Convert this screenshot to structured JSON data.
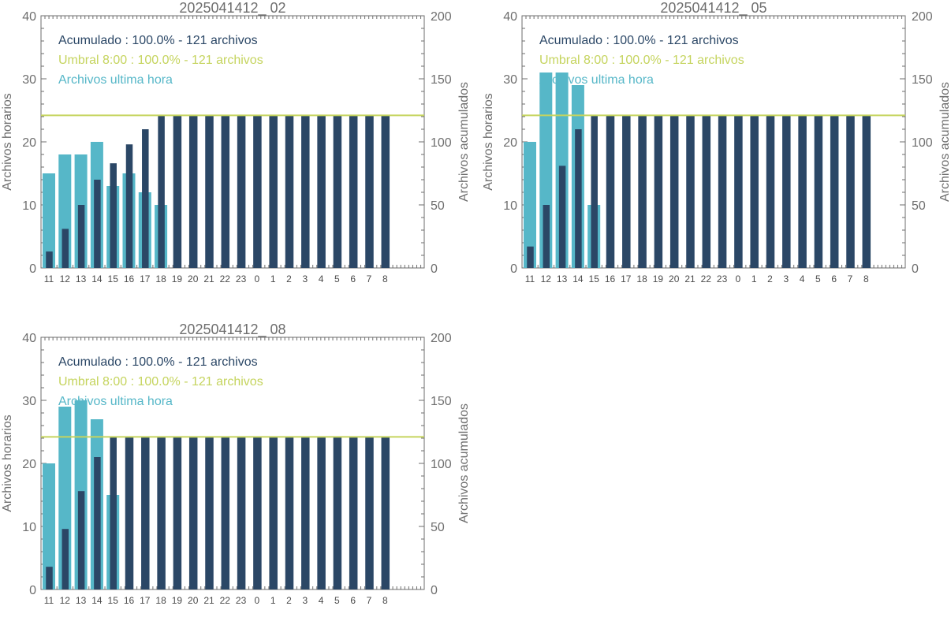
{
  "colors": {
    "hourly": "#56B7C8",
    "cumulative": "#2B4766",
    "threshold": "#C5D45E",
    "axis": "#6e6e6e"
  },
  "chart_data": [
    {
      "type": "bar",
      "title": "2025041412_ 02",
      "categories": [
        "11",
        "12",
        "13",
        "14",
        "15",
        "16",
        "17",
        "18",
        "19",
        "20",
        "21",
        "22",
        "23",
        "0",
        "1",
        "2",
        "3",
        "4",
        "5",
        "6",
        "7",
        "8"
      ],
      "ylabel": "Archivos horarios",
      "y2label": "Archivos acumulados",
      "ylim": [
        0,
        40
      ],
      "y2lim": [
        0,
        200
      ],
      "yticks": [
        "0",
        "10",
        "20",
        "30",
        "40"
      ],
      "y2ticks": [
        "0",
        "50",
        "100",
        "150",
        "200"
      ],
      "threshold": 121,
      "legend": [
        "Acumulado : 100.0% - 121 archivos",
        "Umbral 8:00 : 100.0% - 121 archivos",
        "Archivos ultima hora"
      ],
      "series": [
        {
          "values": [
            15,
            18,
            18,
            20,
            13,
            15,
            12,
            10,
            0,
            0,
            0,
            0,
            0,
            0,
            0,
            0,
            0,
            0,
            0,
            0,
            0,
            0
          ]
        },
        {
          "values": [
            13,
            31,
            50,
            70,
            83,
            98,
            110,
            121,
            121,
            121,
            121,
            121,
            121,
            121,
            121,
            121,
            121,
            121,
            121,
            121,
            121,
            121
          ]
        }
      ]
    },
    {
      "type": "bar",
      "title": "2025041412_ 05",
      "categories": [
        "11",
        "12",
        "13",
        "14",
        "15",
        "16",
        "17",
        "18",
        "19",
        "20",
        "21",
        "22",
        "23",
        "0",
        "1",
        "2",
        "3",
        "4",
        "5",
        "6",
        "7",
        "8"
      ],
      "ylabel": "Archivos horarios",
      "y2label": "Archivos acumulados",
      "ylim": [
        0,
        40
      ],
      "y2lim": [
        0,
        200
      ],
      "yticks": [
        "0",
        "10",
        "20",
        "30",
        "40"
      ],
      "y2ticks": [
        "0",
        "50",
        "100",
        "150",
        "200"
      ],
      "threshold": 121,
      "legend": [
        "Acumulado : 100.0% - 121 archivos",
        "Umbral 8:00 : 100.0% - 121 archivos",
        "Archivos ultima hora"
      ],
      "series": [
        {
          "values": [
            20,
            31,
            31,
            29,
            10,
            0,
            0,
            0,
            0,
            0,
            0,
            0,
            0,
            0,
            0,
            0,
            0,
            0,
            0,
            0,
            0,
            0
          ]
        },
        {
          "values": [
            17,
            50,
            81,
            110,
            121,
            121,
            121,
            121,
            121,
            121,
            121,
            121,
            121,
            121,
            121,
            121,
            121,
            121,
            121,
            121,
            121,
            121
          ]
        }
      ]
    },
    {
      "type": "bar",
      "title": "2025041412_ 08",
      "categories": [
        "11",
        "12",
        "13",
        "14",
        "15",
        "16",
        "17",
        "18",
        "19",
        "20",
        "21",
        "22",
        "23",
        "0",
        "1",
        "2",
        "3",
        "4",
        "5",
        "6",
        "7",
        "8"
      ],
      "ylabel": "Archivos horarios",
      "y2label": "Archivos acumulados",
      "ylim": [
        0,
        40
      ],
      "y2lim": [
        0,
        200
      ],
      "yticks": [
        "0",
        "10",
        "20",
        "30",
        "40"
      ],
      "y2ticks": [
        "0",
        "50",
        "100",
        "150",
        "200"
      ],
      "threshold": 121,
      "legend": [
        "Acumulado : 100.0% - 121 archivos",
        "Umbral 8:00 : 100.0% - 121 archivos",
        "Archivos ultima hora"
      ],
      "series": [
        {
          "values": [
            20,
            29,
            30,
            27,
            15,
            0,
            0,
            0,
            0,
            0,
            0,
            0,
            0,
            0,
            0,
            0,
            0,
            0,
            0,
            0,
            0,
            0
          ]
        },
        {
          "values": [
            18,
            48,
            78,
            105,
            121,
            121,
            121,
            121,
            121,
            121,
            121,
            121,
            121,
            121,
            121,
            121,
            121,
            121,
            121,
            121,
            121,
            121
          ]
        }
      ]
    }
  ]
}
